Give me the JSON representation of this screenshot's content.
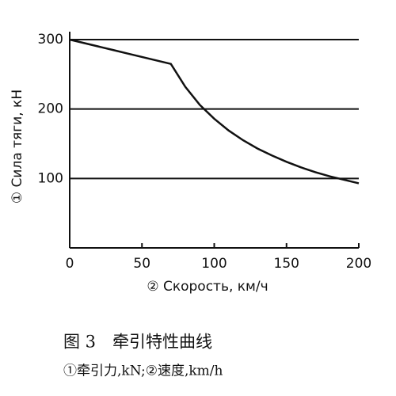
{
  "chart_data": {
    "type": "line",
    "x_label": "② Скорость, км/ч",
    "y_label": "① Сила тяги, кН",
    "caption": "图 3　牵引特性曲线",
    "caption_note": "①牵引力,kN;②速度,km/h",
    "x": [
      0,
      10,
      20,
      30,
      40,
      50,
      60,
      70,
      80,
      90,
      100,
      110,
      120,
      130,
      140,
      150,
      160,
      170,
      180,
      190,
      200
    ],
    "values": [
      300,
      295,
      290,
      285,
      280,
      275,
      270,
      265,
      232,
      206,
      186,
      169,
      155,
      143,
      133,
      124,
      116,
      109,
      103,
      98,
      93
    ],
    "color": "#111111",
    "xlim": [
      0,
      200
    ],
    "xticks": [
      0,
      50,
      100,
      150,
      200
    ],
    "ylim": [
      0,
      300
    ],
    "yticks": [
      100,
      200,
      300
    ],
    "grid": true
  }
}
